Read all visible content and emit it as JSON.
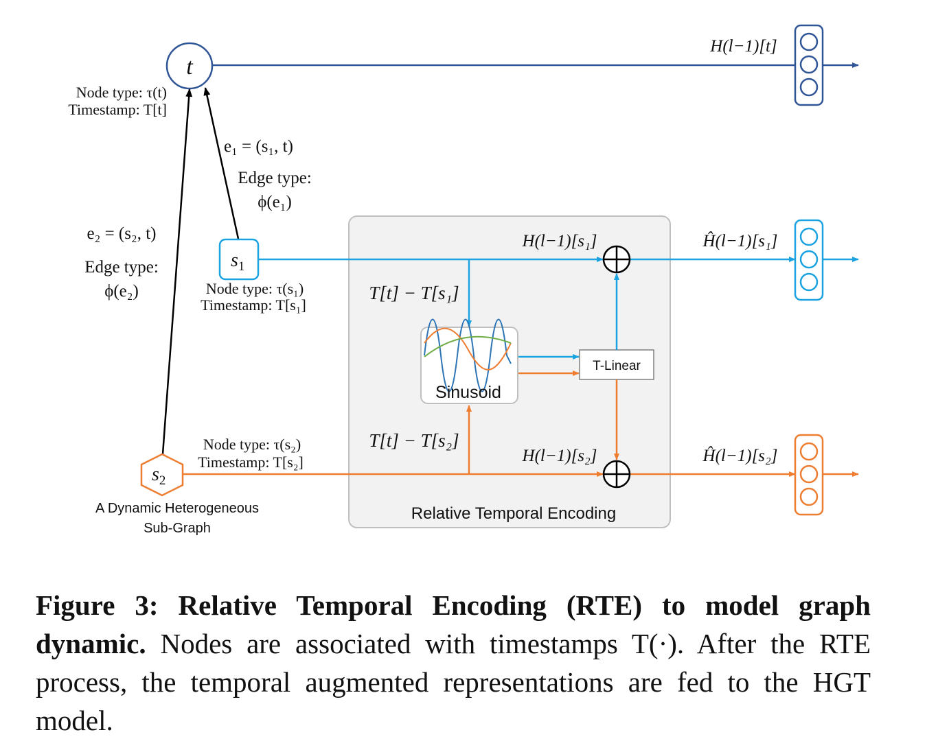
{
  "colors": {
    "dark_blue": "#2f5597",
    "light_blue": "#1aa3e0",
    "orange": "#ed7d31",
    "box_fill": "#f2f2f2",
    "box_stroke": "#bfbfbf"
  },
  "nodes": {
    "t": {
      "label": "t",
      "type_label": "Node type: τ(t)",
      "time_label": "Timestamp: T[t]"
    },
    "s1": {
      "label": "s",
      "sub": "1",
      "type_label": "Node type: τ(s₁)",
      "time_label": "Timestamp: T[s₁]"
    },
    "s2": {
      "label": "s",
      "sub": "2",
      "type_label": "Node type: τ(s₂)",
      "time_label": "Timestamp: T[s₂]"
    }
  },
  "edges": {
    "e1": {
      "def": "e₁ = (s₁, t)",
      "type_title": "Edge type:",
      "type_value": "ϕ(e₁)"
    },
    "e2": {
      "def": "e₂ = (s₂, t)",
      "type_title": "Edge type:",
      "type_value": "ϕ(e₂)"
    }
  },
  "subgraph_label": [
    "A Dynamic Heterogeneous",
    "Sub-Graph"
  ],
  "rte": {
    "title": "Relative Temporal Encoding",
    "sinusoid_label": "Sinusoid",
    "tlinear_label": "T-Linear",
    "delta_s1": "T[t] − T[s₁]",
    "delta_s2": "T[t] − T[s₂]",
    "h_s1": "H(l−1)[s₁]",
    "h_s2": "H(l−1)[s₂]"
  },
  "outputs": {
    "t": "H(l−1)[t]",
    "s1": "Ĥ(l−1)[s₁]",
    "s2": "Ĥ(l−1)[s₂]"
  },
  "caption": {
    "bold": "Figure 3: Relative Temporal Encoding (RTE) to model graph dynamic.",
    "text": " Nodes are associated with timestamps T(·). After the RTE process, the temporal augmented representations are fed to the HGT model."
  }
}
